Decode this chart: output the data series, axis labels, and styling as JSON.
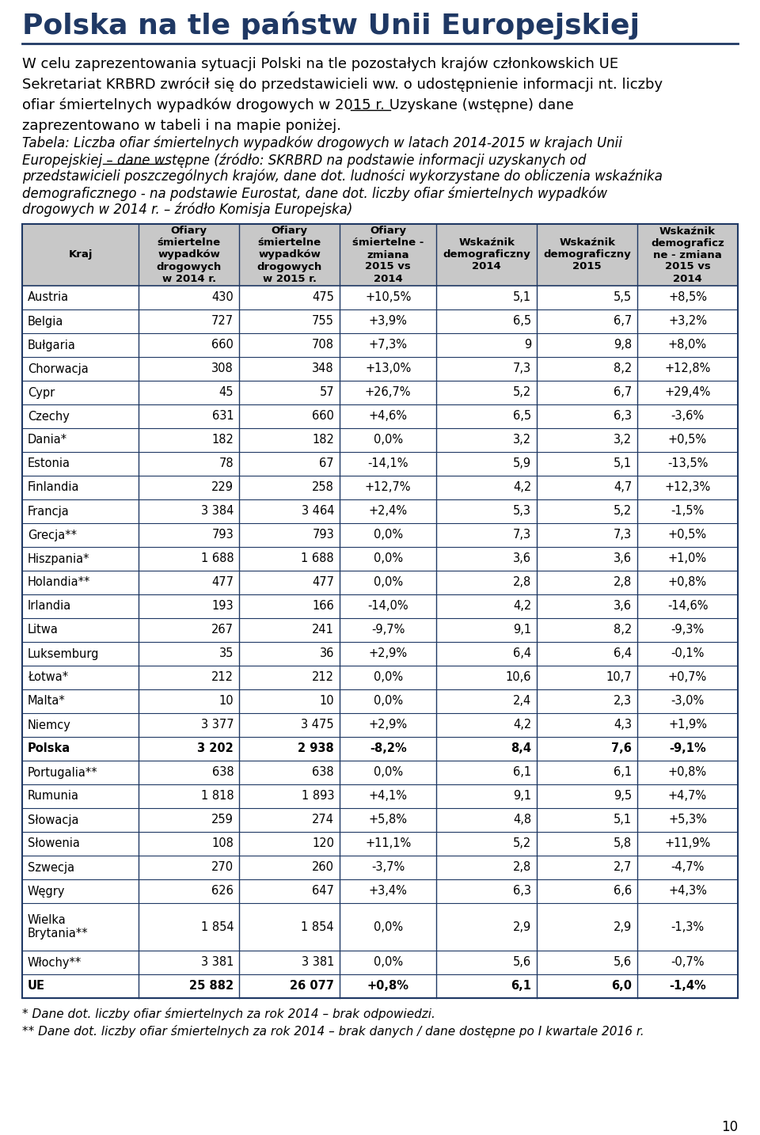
{
  "title": "Polska na tle państw Unii Europejskiej",
  "intro_lines": [
    "W celu zaprezentowania sytuacji Polski na tle pozostałych krajów członkowskich UE",
    "Sekretariat KRBRD zwrócił się do przedstawicieli ww. o udostępnienie informacji nt. liczby",
    "ofiar śmiertelnych wypadków drogowych w 2015 r. Uzyskane (wstępne) dane",
    "zaprezentowano w tabeli i na mapie poniżej."
  ],
  "intro_underline_line": 2,
  "intro_underline_before": "ofiar śmiertelnych wypadków drogowych w 2015 r. Uzyskane (",
  "intro_underline_word": "wstępne",
  "caption_lines": [
    "Tabela: Liczba ofiar śmiertelnych wypadków drogowych w latach 2014-2015 w krajach Unii",
    "Europejskiej – dane wstępne (źródło: SKRBRD na podstawie informacji uzyskanych od",
    "przedstawicieli poszczególnych krajów, dane dot. ludności wykorzystane do obliczenia wskaźnika",
    "demograficznego - na podstawie Eurostat, dane dot. liczby ofiar śmiertelnych wypadków",
    "drogowych w 2014 r. – źródło Komisja Europejska)"
  ],
  "caption_underline_line": 1,
  "caption_underline_before": "Europejskiej – ",
  "caption_underline_word": "dane wstępne",
  "col_headers": [
    "Kraj",
    "Ofiary\nśmiertelne\nwypadków\ndrogowych\nw 2014 r.",
    "Ofiary\nśmiertelne\nwypadków\ndrogowych\nw 2015 r.",
    "Ofiary\nśmiertelne -\nzmiana\n2015 vs\n2014",
    "Wskaźnik\ndemograficzny\n2014",
    "Wskaźnik\ndemograficzny\n2015",
    "Wskaźnik\ndemograficz\nne - zmiana\n2015 vs\n2014"
  ],
  "col_widths_raw": [
    130,
    112,
    112,
    108,
    112,
    112,
    112
  ],
  "rows": [
    [
      "Austria",
      "430",
      "475",
      "+10,5%",
      "5,1",
      "5,5",
      "+8,5%"
    ],
    [
      "Belgia",
      "727",
      "755",
      "+3,9%",
      "6,5",
      "6,7",
      "+3,2%"
    ],
    [
      "Bułgaria",
      "660",
      "708",
      "+7,3%",
      "9",
      "9,8",
      "+8,0%"
    ],
    [
      "Chorwacja",
      "308",
      "348",
      "+13,0%",
      "7,3",
      "8,2",
      "+12,8%"
    ],
    [
      "Cypr",
      "45",
      "57",
      "+26,7%",
      "5,2",
      "6,7",
      "+29,4%"
    ],
    [
      "Czechy",
      "631",
      "660",
      "+4,6%",
      "6,5",
      "6,3",
      "-3,6%"
    ],
    [
      "Dania*",
      "182",
      "182",
      "0,0%",
      "3,2",
      "3,2",
      "+0,5%"
    ],
    [
      "Estonia",
      "78",
      "67",
      "-14,1%",
      "5,9",
      "5,1",
      "-13,5%"
    ],
    [
      "Finlandia",
      "229",
      "258",
      "+12,7%",
      "4,2",
      "4,7",
      "+12,3%"
    ],
    [
      "Francja",
      "3 384",
      "3 464",
      "+2,4%",
      "5,3",
      "5,2",
      "-1,5%"
    ],
    [
      "Grecja**",
      "793",
      "793",
      "0,0%",
      "7,3",
      "7,3",
      "+0,5%"
    ],
    [
      "Hiszpania*",
      "1 688",
      "1 688",
      "0,0%",
      "3,6",
      "3,6",
      "+1,0%"
    ],
    [
      "Holandia**",
      "477",
      "477",
      "0,0%",
      "2,8",
      "2,8",
      "+0,8%"
    ],
    [
      "Irlandia",
      "193",
      "166",
      "-14,0%",
      "4,2",
      "3,6",
      "-14,6%"
    ],
    [
      "Litwa",
      "267",
      "241",
      "-9,7%",
      "9,1",
      "8,2",
      "-9,3%"
    ],
    [
      "Luksemburg",
      "35",
      "36",
      "+2,9%",
      "6,4",
      "6,4",
      "-0,1%"
    ],
    [
      "Łotwa*",
      "212",
      "212",
      "0,0%",
      "10,6",
      "10,7",
      "+0,7%"
    ],
    [
      "Malta*",
      "10",
      "10",
      "0,0%",
      "2,4",
      "2,3",
      "-3,0%"
    ],
    [
      "Niemcy",
      "3 377",
      "3 475",
      "+2,9%",
      "4,2",
      "4,3",
      "+1,9%"
    ],
    [
      "Polska",
      "3 202",
      "2 938",
      "-8,2%",
      "8,4",
      "7,6",
      "-9,1%"
    ],
    [
      "Portugalia**",
      "638",
      "638",
      "0,0%",
      "6,1",
      "6,1",
      "+0,8%"
    ],
    [
      "Rumunia",
      "1 818",
      "1 893",
      "+4,1%",
      "9,1",
      "9,5",
      "+4,7%"
    ],
    [
      "Słowacja",
      "259",
      "274",
      "+5,8%",
      "4,8",
      "5,1",
      "+5,3%"
    ],
    [
      "Słowenia",
      "108",
      "120",
      "+11,1%",
      "5,2",
      "5,8",
      "+11,9%"
    ],
    [
      "Szwecja",
      "270",
      "260",
      "-3,7%",
      "2,8",
      "2,7",
      "-4,7%"
    ],
    [
      "Węgry",
      "626",
      "647",
      "+3,4%",
      "6,3",
      "6,6",
      "+4,3%"
    ],
    [
      "Wielka\nBrytania**",
      "1 854",
      "1 854",
      "0,0%",
      "2,9",
      "2,9",
      "-1,3%"
    ],
    [
      "Włochy**",
      "3 381",
      "3 381",
      "0,0%",
      "5,6",
      "5,6",
      "-0,7%"
    ],
    [
      "UE",
      "25 882",
      "26 077",
      "+0,8%",
      "6,1",
      "6,0",
      "-1,4%"
    ]
  ],
  "bold_rows": [
    "Polska",
    "UE"
  ],
  "footnote1": "* Dane dot. liczby ofiar śmiertelnych za rok 2014 – brak odpowiedzi.",
  "footnote2": "** Dane dot. liczby ofiar śmiertelnych za rok 2014 – brak danych / dane dostępne po I kwartale 2016 r.",
  "page_number": "10",
  "title_color": "#1F3864",
  "header_bg_color": "#C8C8C8",
  "border_color": "#1F3864"
}
